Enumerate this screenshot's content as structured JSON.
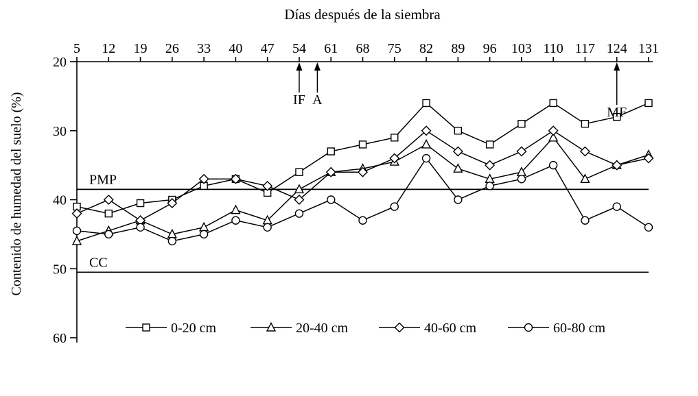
{
  "chart_data": {
    "type": "line",
    "title": "Días después de la siembra",
    "ylabel": "Contenido de humedad del suelo (%)",
    "xlabel": "",
    "x": [
      5,
      12,
      19,
      26,
      33,
      40,
      47,
      54,
      61,
      68,
      75,
      82,
      89,
      96,
      103,
      110,
      117,
      124,
      131
    ],
    "xlim": [
      5,
      131
    ],
    "ylim": [
      20,
      60
    ],
    "y_axis_inverted": true,
    "yticks": [
      20,
      30,
      40,
      50,
      60
    ],
    "grid": false,
    "legend_position": "bottom-inside",
    "series": [
      {
        "name": "0-20 cm",
        "marker": "square",
        "values": [
          41,
          42,
          40.5,
          40,
          38,
          37,
          39,
          36,
          33,
          32,
          31,
          26,
          30,
          32,
          29,
          26,
          29,
          28,
          26
        ]
      },
      {
        "name": "20-40 cm",
        "marker": "triangle",
        "values": [
          46,
          44.5,
          43,
          45,
          44,
          41.5,
          43,
          38.5,
          36,
          35.5,
          34.5,
          32,
          35.5,
          37,
          36,
          31,
          37,
          35,
          33.5
        ]
      },
      {
        "name": "40-60 cm",
        "marker": "diamond",
        "values": [
          42,
          40,
          43,
          40.5,
          37,
          37,
          38,
          40,
          36,
          36,
          34,
          30,
          33,
          35,
          33,
          30,
          33,
          35,
          34
        ]
      },
      {
        "name": "60-80 cm",
        "marker": "circle",
        "values": [
          44.5,
          45,
          44,
          46,
          45,
          43,
          44,
          42,
          40,
          43,
          41,
          34,
          40,
          38,
          37,
          35,
          43,
          41,
          44
        ]
      }
    ],
    "reference_lines": [
      {
        "label": "PMP",
        "value": 38.5
      },
      {
        "label": "CC",
        "value": 50.5
      }
    ],
    "annotations": [
      {
        "label": "IF",
        "x": 54,
        "label_y": 152
      },
      {
        "label": "A",
        "x": 58,
        "label_y": 152
      },
      {
        "label": "MF",
        "x": 124,
        "label_y": 170
      }
    ],
    "colors": {
      "line": "#000000",
      "background": "#ffffff"
    }
  }
}
